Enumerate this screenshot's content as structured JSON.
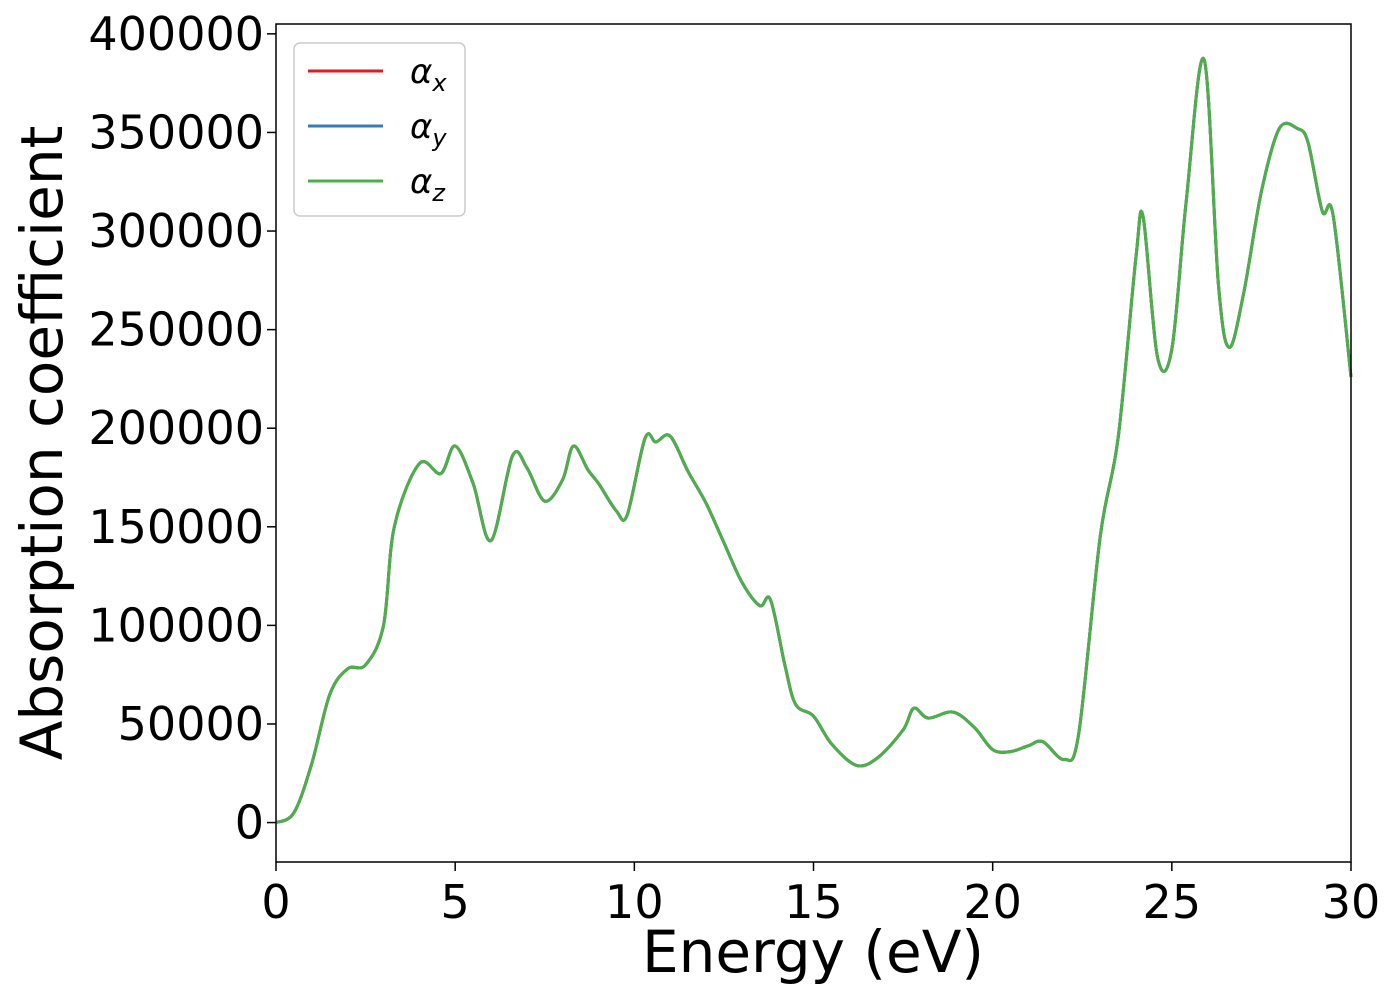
{
  "chart_data": {
    "type": "line",
    "title": "",
    "xlabel": "Energy (eV)",
    "ylabel": "Absorption coefficient",
    "xlim": [
      0,
      30
    ],
    "ylim": [
      -20000,
      405000
    ],
    "xticks": [
      0,
      5,
      10,
      15,
      20,
      25,
      30
    ],
    "xtick_labels": [
      "0",
      "5",
      "10",
      "15",
      "20",
      "25",
      "30"
    ],
    "yticks": [
      0,
      50000,
      100000,
      150000,
      200000,
      250000,
      300000,
      350000,
      400000
    ],
    "ytick_labels": [
      "0",
      "50000",
      "100000",
      "150000",
      "200000",
      "250000",
      "300000",
      "350000",
      "400000"
    ],
    "grid": false,
    "legend_position": "upper-left",
    "x": [
      0,
      0.5,
      1,
      1.5,
      2,
      2.5,
      3,
      3.3,
      4,
      4.6,
      5,
      5.5,
      6,
      6.6,
      7,
      7.5,
      8,
      8.3,
      8.7,
      9,
      9.5,
      9.8,
      10.3,
      10.6,
      11,
      11.5,
      12,
      12.5,
      13,
      13.5,
      13.8,
      14.2,
      14.5,
      15,
      15.5,
      16.2,
      16.8,
      17.5,
      17.8,
      18.2,
      18.9,
      19.5,
      20,
      20.5,
      21,
      21.4,
      22,
      22.4,
      23,
      23.5,
      24,
      24.2,
      24.6,
      25,
      25.4,
      25.9,
      26.3,
      26.6,
      27,
      27.5,
      28,
      28.5,
      28.8,
      29.2,
      29.5,
      30
    ],
    "series": [
      {
        "name": "α",
        "sub": "x",
        "color": "#e41a1c",
        "y": [
          0,
          5000,
          30000,
          65000,
          78000,
          80000,
          100000,
          150000,
          182000,
          177000,
          191000,
          172000,
          143000,
          186000,
          180000,
          163000,
          174000,
          191000,
          179000,
          172000,
          158000,
          156000,
          195000,
          193000,
          196000,
          178000,
          162000,
          142000,
          122000,
          110000,
          113000,
          80000,
          60000,
          54000,
          40000,
          29000,
          33000,
          47000,
          58000,
          53000,
          56000,
          48000,
          37000,
          36000,
          39000,
          41000,
          32000,
          45000,
          145000,
          195000,
          287000,
          307000,
          236000,
          240000,
          315000,
          387000,
          273000,
          241000,
          268000,
          320000,
          352000,
          352000,
          345000,
          310000,
          308000,
          226000
        ]
      },
      {
        "name": "α",
        "sub": "y",
        "color": "#377eb8",
        "y": [
          0,
          5000,
          30000,
          65000,
          78000,
          80000,
          100000,
          150000,
          182000,
          177000,
          191000,
          172000,
          143000,
          186000,
          180000,
          163000,
          174000,
          191000,
          179000,
          172000,
          158000,
          156000,
          195000,
          193000,
          196000,
          178000,
          162000,
          142000,
          122000,
          110000,
          113000,
          80000,
          60000,
          54000,
          40000,
          29000,
          33000,
          47000,
          58000,
          53000,
          56000,
          48000,
          37000,
          36000,
          39000,
          41000,
          32000,
          45000,
          145000,
          195000,
          287000,
          307000,
          236000,
          240000,
          315000,
          387000,
          273000,
          241000,
          268000,
          320000,
          352000,
          352000,
          345000,
          310000,
          308000,
          226000
        ]
      },
      {
        "name": "α",
        "sub": "z",
        "color": "#4daf4a",
        "y": [
          0,
          5000,
          30000,
          65000,
          78000,
          80000,
          100000,
          150000,
          182000,
          177000,
          191000,
          172000,
          143000,
          186000,
          180000,
          163000,
          174000,
          191000,
          179000,
          172000,
          158000,
          156000,
          195000,
          193000,
          196000,
          178000,
          162000,
          142000,
          122000,
          110000,
          113000,
          80000,
          60000,
          54000,
          40000,
          29000,
          33000,
          47000,
          58000,
          53000,
          56000,
          48000,
          37000,
          36000,
          39000,
          41000,
          32000,
          45000,
          145000,
          195000,
          287000,
          307000,
          236000,
          240000,
          315000,
          387000,
          273000,
          241000,
          268000,
          320000,
          352000,
          352000,
          345000,
          310000,
          308000,
          226000
        ]
      }
    ]
  }
}
